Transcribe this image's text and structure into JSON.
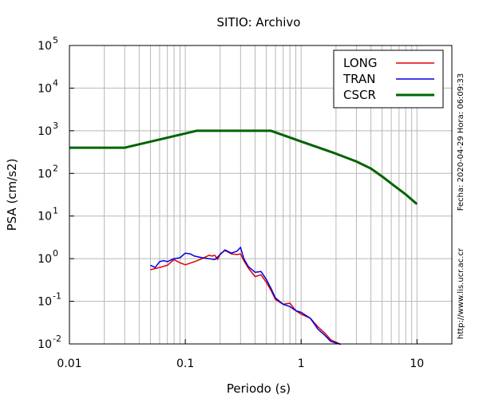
{
  "chart_data": {
    "type": "line",
    "title": "SITIO: Archivo",
    "xlabel": "Periodo (s)",
    "ylabel": "PSA (cm/s2)",
    "x_scale": "log",
    "y_scale": "log",
    "xlim": [
      0.01,
      20
    ],
    "ylim": [
      0.01,
      100000
    ],
    "grid": true,
    "legend_position": "top-right",
    "x_ticks": [
      {
        "value": 0.01,
        "label": "0.01"
      },
      {
        "value": 0.1,
        "label": "0.1"
      },
      {
        "value": 1,
        "label": "1"
      },
      {
        "value": 10,
        "label": "10"
      }
    ],
    "y_ticks": [
      {
        "value": 0.01,
        "base": "10",
        "exp": "-2"
      },
      {
        "value": 0.1,
        "base": "10",
        "exp": "-1"
      },
      {
        "value": 1,
        "base": "10",
        "exp": "0"
      },
      {
        "value": 10,
        "base": "10",
        "exp": "1"
      },
      {
        "value": 100,
        "base": "10",
        "exp": "2"
      },
      {
        "value": 1000,
        "base": "10",
        "exp": "3"
      },
      {
        "value": 10000,
        "base": "10",
        "exp": "4"
      },
      {
        "value": 100000,
        "base": "10",
        "exp": "5"
      }
    ],
    "series": [
      {
        "name": "LONG",
        "color": "#e00000",
        "width": 1.5,
        "x": [
          0.05,
          0.06,
          0.07,
          0.08,
          0.09,
          0.1,
          0.12,
          0.14,
          0.16,
          0.17,
          0.18,
          0.19,
          0.2,
          0.22,
          0.25,
          0.28,
          0.3,
          0.32,
          0.35,
          0.4,
          0.45,
          0.5,
          0.55,
          0.6,
          0.7,
          0.8,
          0.9,
          1.0,
          1.2,
          1.4,
          1.6,
          1.8,
          2.0,
          2.2
        ],
        "y": [
          0.55,
          0.62,
          0.7,
          0.95,
          0.8,
          0.72,
          0.85,
          1.0,
          1.2,
          1.15,
          1.2,
          0.95,
          1.3,
          1.55,
          1.3,
          1.25,
          1.3,
          0.9,
          0.6,
          0.38,
          0.42,
          0.28,
          0.18,
          0.11,
          0.085,
          0.09,
          0.06,
          0.05,
          0.04,
          0.025,
          0.018,
          0.0125,
          0.011,
          0.0098
        ]
      },
      {
        "name": "TRAN",
        "color": "#0000e0",
        "width": 1.5,
        "x": [
          0.05,
          0.055,
          0.06,
          0.065,
          0.07,
          0.08,
          0.09,
          0.1,
          0.11,
          0.12,
          0.14,
          0.16,
          0.18,
          0.2,
          0.22,
          0.25,
          0.28,
          0.3,
          0.32,
          0.35,
          0.4,
          0.45,
          0.5,
          0.55,
          0.6,
          0.7,
          0.8,
          0.9,
          1.0,
          1.2,
          1.4,
          1.6,
          1.8,
          2.0,
          2.2
        ],
        "y": [
          0.7,
          0.62,
          0.85,
          0.9,
          0.85,
          1.0,
          1.05,
          1.35,
          1.3,
          1.15,
          1.05,
          1.0,
          0.95,
          1.25,
          1.6,
          1.35,
          1.5,
          1.85,
          1.0,
          0.65,
          0.48,
          0.5,
          0.33,
          0.2,
          0.12,
          0.085,
          0.075,
          0.06,
          0.055,
          0.04,
          0.022,
          0.016,
          0.0115,
          0.0105,
          0.0098
        ]
      },
      {
        "name": "CSCR",
        "color": "#006400",
        "width": 3,
        "x": [
          0.01,
          0.03,
          0.125,
          0.55,
          1.0,
          2.0,
          3.0,
          4.0,
          5.0,
          6.0,
          8.0,
          10.0
        ],
        "y": [
          400,
          400,
          1000,
          1000,
          560,
          290,
          190,
          130,
          85,
          58,
          32,
          19
        ]
      }
    ],
    "annotations": [
      "Fecha: 2020-04-29  Hora: 06:09:33",
      "http://www.lis.ucr.ac.cr"
    ]
  }
}
